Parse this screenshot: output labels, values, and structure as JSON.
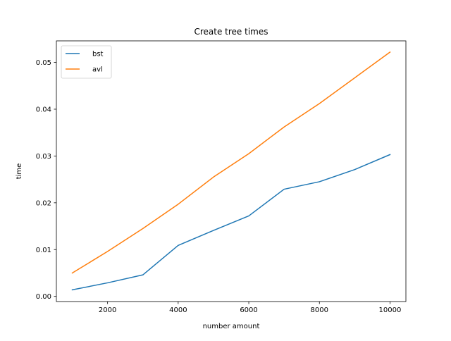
{
  "chart_data": {
    "type": "line",
    "title": "Create tree times",
    "xlabel": "number amount",
    "ylabel": "time",
    "xlim": [
      550,
      10450
    ],
    "ylim": [
      -0.0011,
      0.0546
    ],
    "x_ticks": [
      2000,
      4000,
      6000,
      8000,
      10000
    ],
    "x_tick_labels": [
      "2000",
      "4000",
      "6000",
      "8000",
      "10000"
    ],
    "y_ticks": [
      0.0,
      0.01,
      0.02,
      0.03,
      0.04,
      0.05
    ],
    "y_tick_labels": [
      "0.00",
      "0.01",
      "0.02",
      "0.03",
      "0.04",
      "0.05"
    ],
    "grid": false,
    "legend_position": "top-left",
    "x": [
      1000,
      2000,
      3000,
      4000,
      5000,
      6000,
      7000,
      8000,
      9000,
      10000
    ],
    "series": [
      {
        "name": "bst",
        "color": "#1f77b4",
        "values": [
          0.0014,
          0.0029,
          0.0046,
          0.0109,
          0.0141,
          0.0172,
          0.0229,
          0.0245,
          0.0271,
          0.0303
        ]
      },
      {
        "name": "avl",
        "color": "#ff7f0e",
        "values": [
          0.005,
          0.0096,
          0.0145,
          0.0197,
          0.0255,
          0.0305,
          0.0362,
          0.0412,
          0.0467,
          0.0522
        ]
      }
    ]
  }
}
